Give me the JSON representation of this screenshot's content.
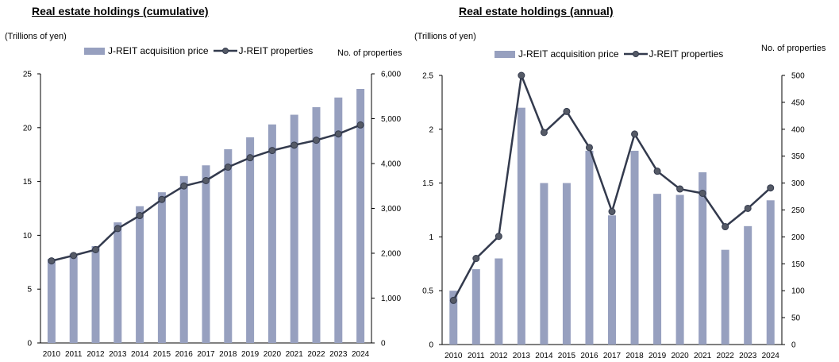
{
  "chart_data": [
    {
      "type": "bar+line",
      "title": "Real estate holdings (cumulative)",
      "y_label": "(Trillions of yen)",
      "y2_label": "No. of properties",
      "categories": [
        "2010",
        "2011",
        "2012",
        "2013",
        "2014",
        "2015",
        "2016",
        "2017",
        "2018",
        "2019",
        "2020",
        "2021",
        "2022",
        "2023",
        "2024"
      ],
      "ylim": [
        0,
        25
      ],
      "y_ticks": [
        0,
        5,
        10,
        15,
        20,
        25
      ],
      "y2lim": [
        0,
        6000
      ],
      "y2_ticks": [
        "0",
        "1,000",
        "2,000",
        "3,000",
        "4,000",
        "5,000",
        "6,000"
      ],
      "y2_tick_values": [
        0,
        1000,
        2000,
        3000,
        4000,
        5000,
        6000
      ],
      "series": [
        {
          "name": "J-REIT acquisition price",
          "type": "bar",
          "axis": "left",
          "color": "#97a0bf",
          "values": [
            7.8,
            8.3,
            9.0,
            11.2,
            12.7,
            14.0,
            15.5,
            16.5,
            18.0,
            19.1,
            20.3,
            21.2,
            21.9,
            22.8,
            23.6
          ]
        },
        {
          "name": "J-REIT properties",
          "type": "line",
          "axis": "right",
          "color": "#333a4d",
          "values": [
            1830,
            1950,
            2080,
            2550,
            2840,
            3200,
            3500,
            3620,
            3920,
            4130,
            4290,
            4410,
            4520,
            4660,
            4860
          ]
        }
      ],
      "grid": false,
      "legend_position": "top"
    },
    {
      "type": "bar+line",
      "title": "Real estate holdings (annual)",
      "y_label": "(Trillions of yen)",
      "y2_label": "No. of properties",
      "categories": [
        "2010",
        "2011",
        "2012",
        "2013",
        "2014",
        "2015",
        "2016",
        "2017",
        "2018",
        "2019",
        "2020",
        "2021",
        "2022",
        "2023",
        "2024"
      ],
      "ylim": [
        0,
        2.5
      ],
      "y_ticks": [
        "0",
        "0.5",
        "1",
        "1.5",
        "2",
        "2.5"
      ],
      "y_tick_values": [
        0,
        0.5,
        1,
        1.5,
        2,
        2.5
      ],
      "y2lim": [
        0,
        500
      ],
      "y2_ticks": [
        0,
        50,
        100,
        150,
        200,
        250,
        300,
        350,
        400,
        450,
        500
      ],
      "series": [
        {
          "name": "J-REIT acquisition price",
          "type": "bar",
          "axis": "left",
          "color": "#97a0bf",
          "values": [
            0.5,
            0.7,
            0.8,
            2.2,
            1.5,
            1.5,
            1.8,
            1.2,
            1.8,
            1.4,
            1.39,
            1.6,
            0.88,
            1.1,
            1.34
          ]
        },
        {
          "name": "J-REIT properties",
          "type": "line",
          "axis": "right",
          "color": "#333a4d",
          "values": [
            82,
            160,
            201,
            500,
            394,
            433,
            366,
            247,
            391,
            322,
            289,
            281,
            219,
            253,
            291
          ]
        }
      ],
      "grid": false,
      "legend_position": "top"
    }
  ]
}
